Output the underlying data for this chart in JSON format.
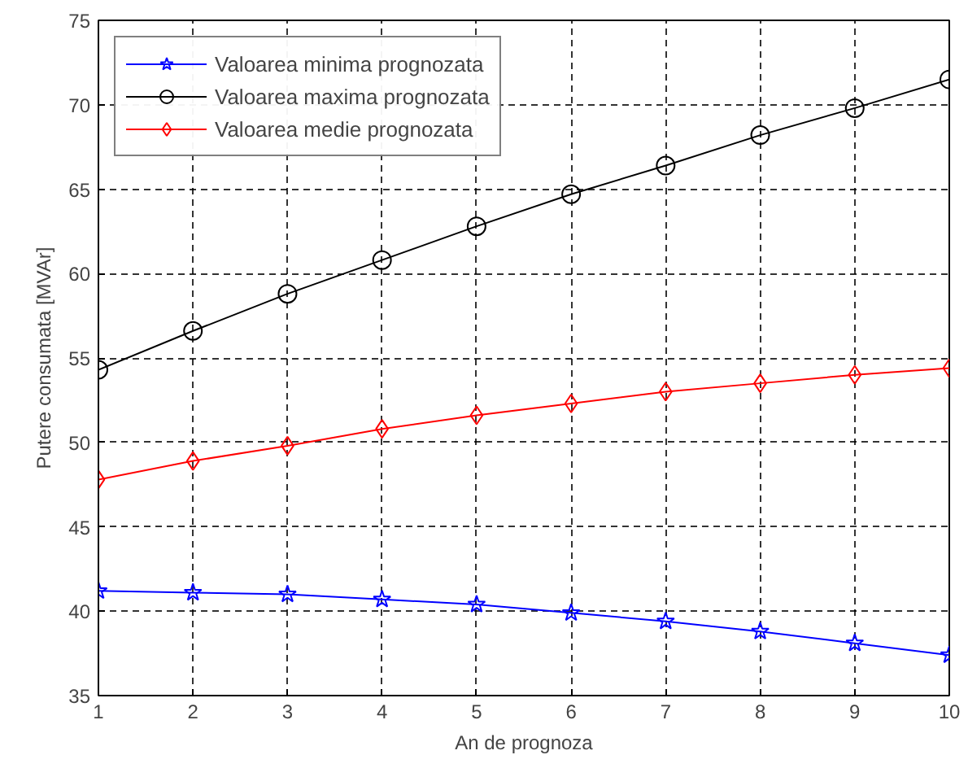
{
  "chart_data": {
    "type": "line",
    "xlabel": "An de prognoza",
    "ylabel": "Putere consumata [MVAr]",
    "x": [
      1,
      2,
      3,
      4,
      5,
      6,
      7,
      8,
      9,
      10
    ],
    "xlim": [
      1,
      10
    ],
    "xticks": [
      1,
      2,
      3,
      4,
      5,
      6,
      7,
      8,
      9,
      10
    ],
    "ylim": [
      35,
      75
    ],
    "yticks": [
      35,
      40,
      45,
      50,
      55,
      60,
      65,
      70,
      75
    ],
    "grid": true,
    "legend": "top left",
    "series": [
      {
        "name": "Valoarea minima prognozata",
        "color": "#0000ff",
        "marker": "star",
        "values": [
          41.2,
          41.1,
          41.0,
          40.7,
          40.4,
          39.9,
          39.4,
          38.8,
          38.1,
          37.4
        ]
      },
      {
        "name": "Valoarea maxima prognozata",
        "color": "#000000",
        "marker": "circle",
        "values": [
          54.3,
          56.6,
          58.8,
          60.8,
          62.8,
          64.7,
          66.4,
          68.2,
          69.8,
          71.5
        ]
      },
      {
        "name": "Valoarea medie prognozata",
        "color": "#ff0000",
        "marker": "diamond",
        "values": [
          47.8,
          48.9,
          49.8,
          50.8,
          51.6,
          52.3,
          53.0,
          53.5,
          54.0,
          54.4
        ]
      }
    ]
  }
}
